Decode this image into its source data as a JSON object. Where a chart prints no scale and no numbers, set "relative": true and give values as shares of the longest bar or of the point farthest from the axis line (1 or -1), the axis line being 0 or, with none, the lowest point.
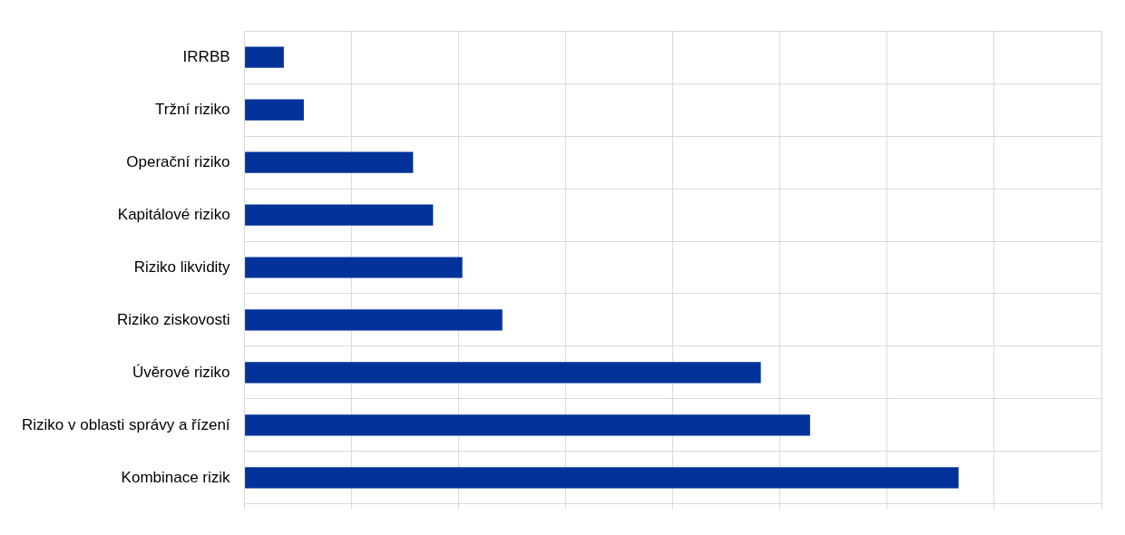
{
  "chart_data": {
    "type": "bar",
    "orientation": "horizontal",
    "relative": true,
    "categories": [
      "IRRBB",
      "Tržní riziko",
      "Operační riziko",
      "Kapitálové riziko",
      "Riziko likvidity",
      "Riziko ziskovosti",
      "Úvěrové riziko",
      "Riziko v oblasti správy a řízení",
      "Kombinace rizik"
    ],
    "values": [
      0.055,
      0.083,
      0.236,
      0.264,
      0.305,
      0.361,
      0.723,
      0.792,
      1
    ],
    "color": "#003299",
    "grid": true,
    "tick_labels": "y",
    "legend": false
  }
}
